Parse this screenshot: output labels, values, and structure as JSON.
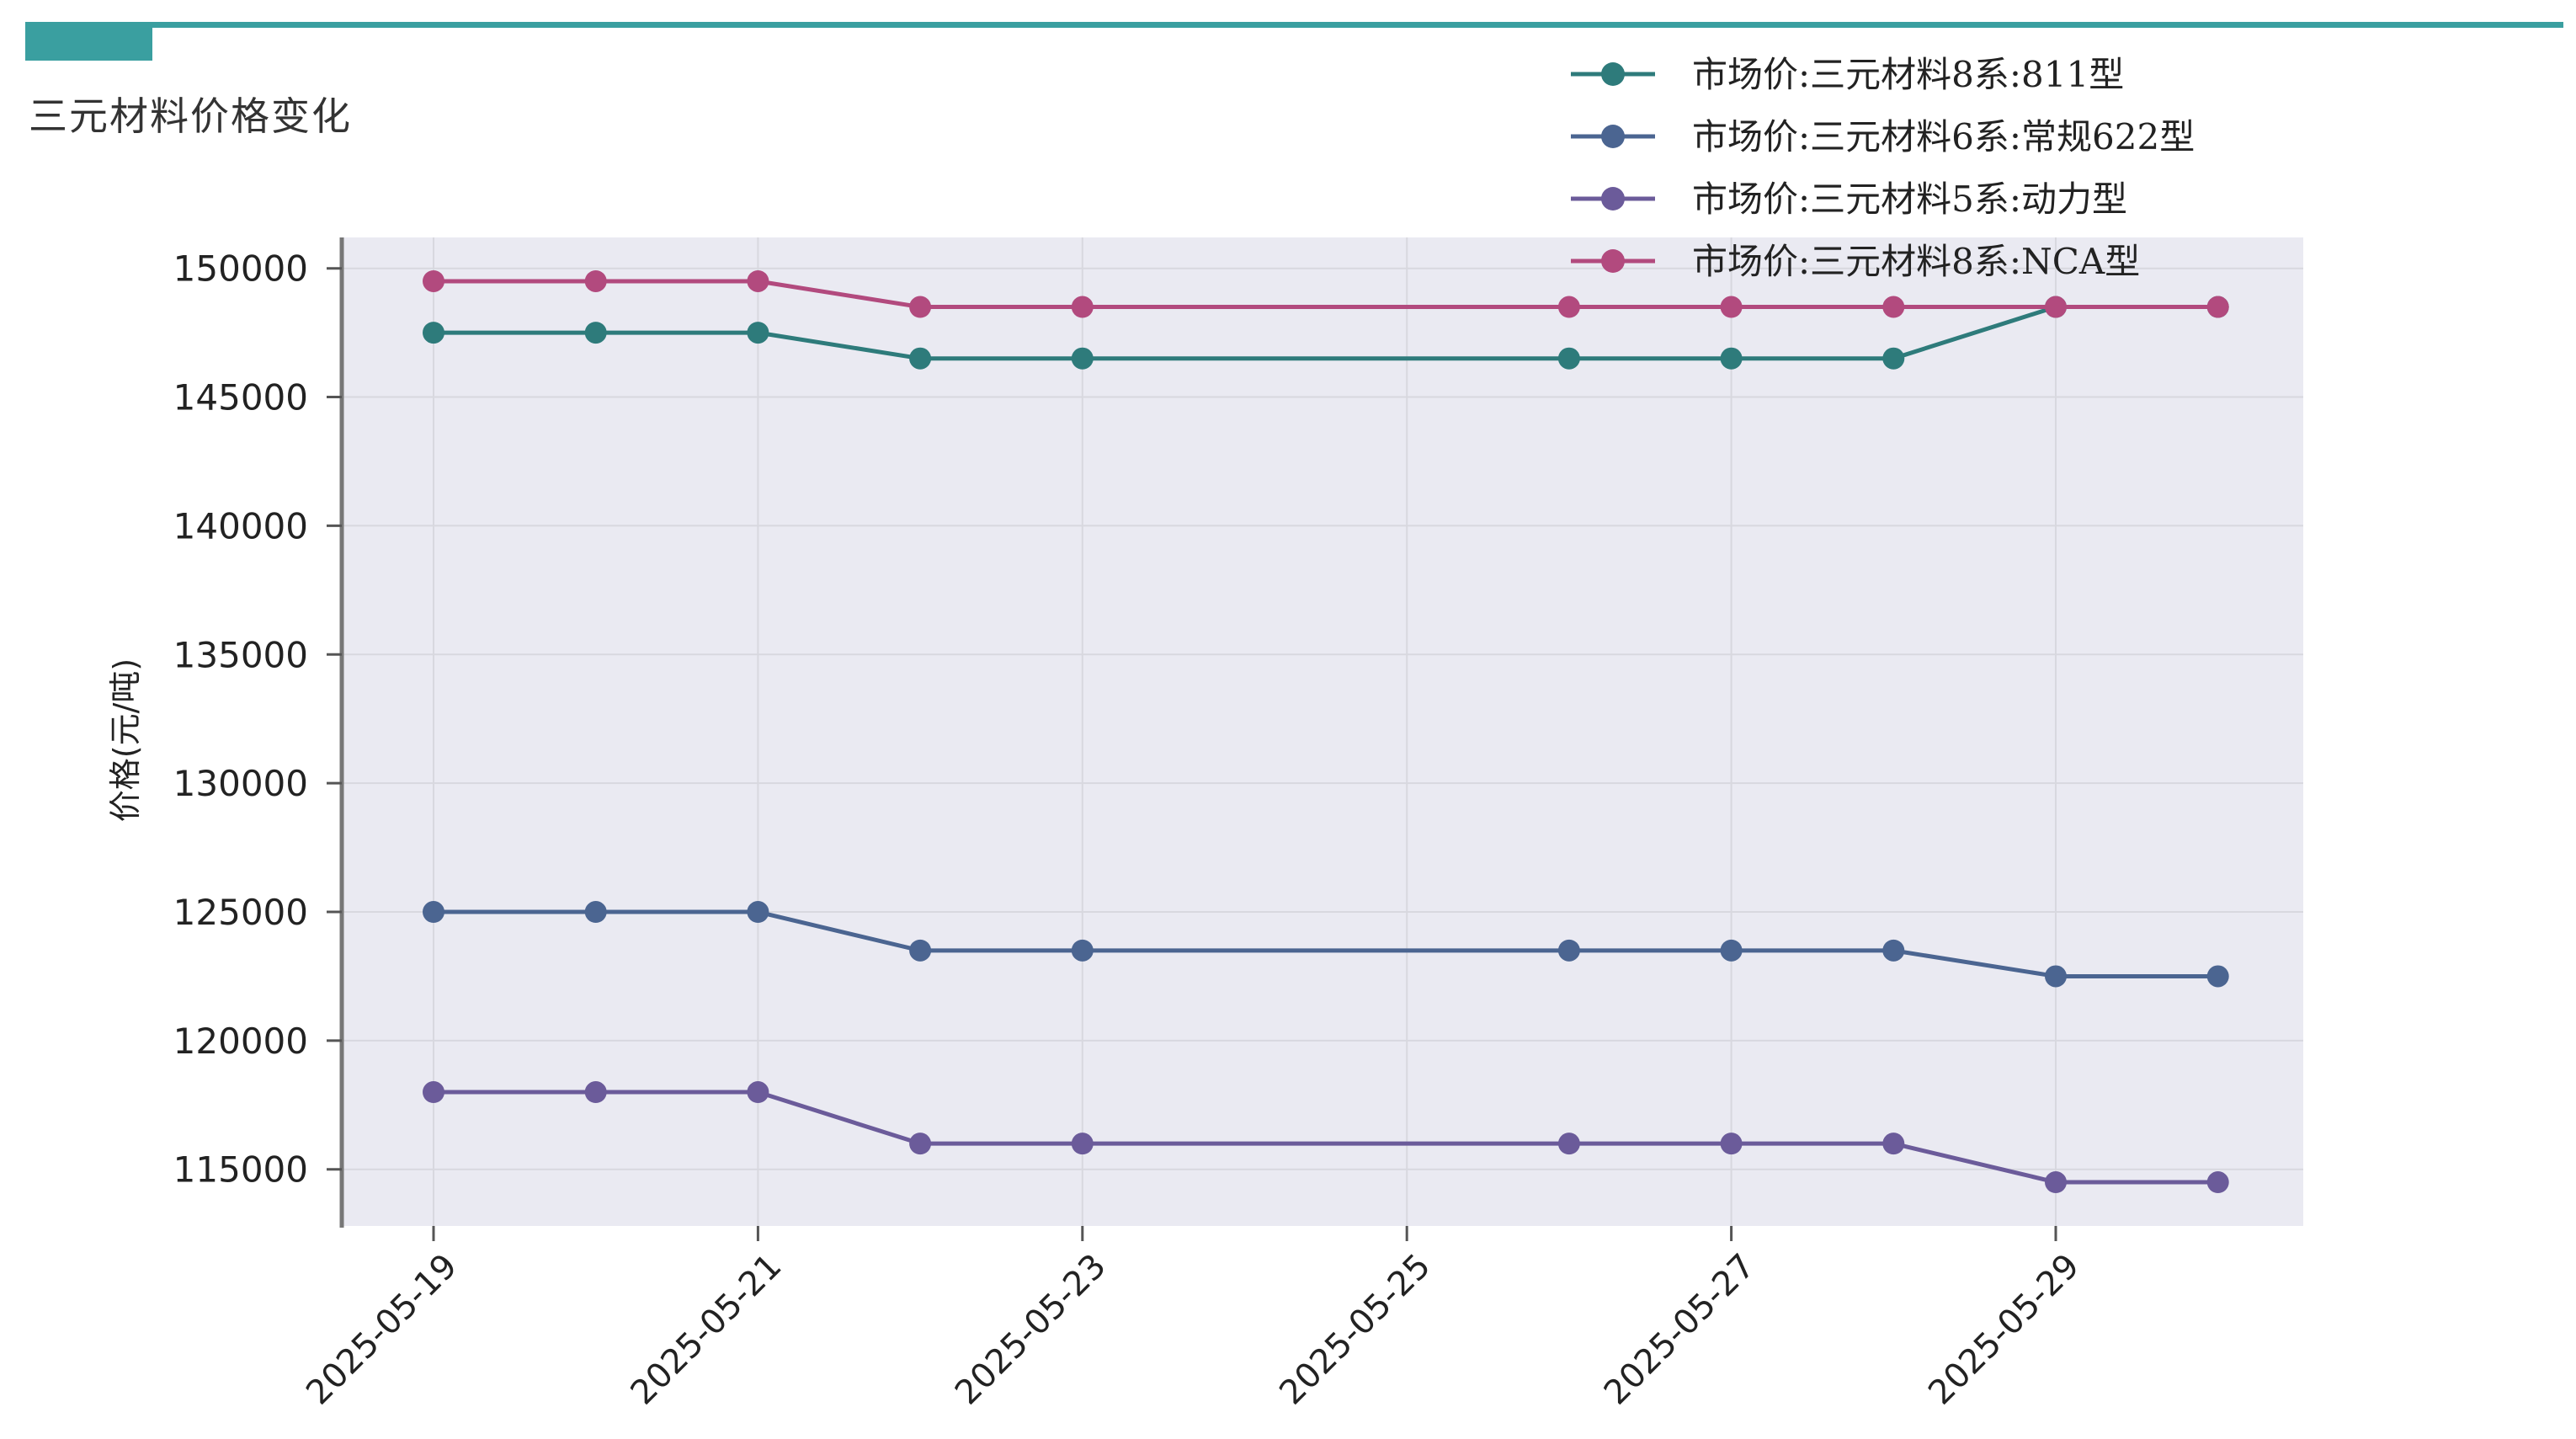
{
  "page": {
    "title": "三元材料价格变化",
    "accent_color": "#3a9fa0"
  },
  "chart_data": {
    "type": "line",
    "title": "",
    "xlabel": "",
    "ylabel": "价格(元/吨)",
    "x": [
      "2025-05-19",
      "2025-05-20",
      "2025-05-21",
      "2025-05-22",
      "2025-05-23",
      "2025-05-26",
      "2025-05-27",
      "2025-05-28",
      "2025-05-29",
      "2025-05-30"
    ],
    "x_ticks": [
      "2025-05-19",
      "2025-05-21",
      "2025-05-23",
      "2025-05-25",
      "2025-05-27",
      "2025-05-29"
    ],
    "y_ticks": [
      115000,
      120000,
      125000,
      130000,
      135000,
      140000,
      145000,
      150000
    ],
    "ylim": [
      112800,
      151200
    ],
    "xlim": [
      "2025-05-19",
      "2025-05-30"
    ],
    "grid": true,
    "legend_position": "top-right",
    "series": [
      {
        "name": "市场价:三元材料8系:811型",
        "color": "#2e7b7b",
        "values": [
          147500,
          147500,
          147500,
          146500,
          146500,
          146500,
          146500,
          146500,
          148500,
          148500
        ]
      },
      {
        "name": "市场价:三元材料6系:常规622型",
        "color": "#4b6591",
        "values": [
          125000,
          125000,
          125000,
          123500,
          123500,
          123500,
          123500,
          123500,
          122500,
          122500
        ]
      },
      {
        "name": "市场价:三元材料5系:动力型",
        "color": "#6b5b9a",
        "values": [
          118000,
          118000,
          118000,
          116000,
          116000,
          116000,
          116000,
          116000,
          114500,
          114500
        ]
      },
      {
        "name": "市场价:三元材料8系:NCA型",
        "color": "#b24a7e",
        "values": [
          149500,
          149500,
          149500,
          148500,
          148500,
          148500,
          148500,
          148500,
          148500,
          148500
        ]
      }
    ]
  }
}
